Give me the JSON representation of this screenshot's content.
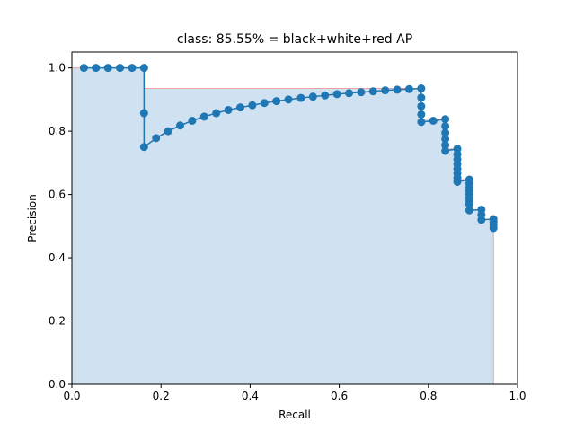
{
  "chart_data": {
    "type": "line",
    "title": "class: 85.55% = black+white+red AP",
    "xlabel": "Recall",
    "ylabel": "Precision",
    "xlim": [
      0,
      1
    ],
    "ylim": [
      0,
      1.05
    ],
    "grid": false,
    "xticks": [
      0.0,
      0.2,
      0.4,
      0.6,
      0.8,
      1.0
    ],
    "xtick_labels": [
      "0.0",
      "0.2",
      "0.4",
      "0.6",
      "0.8",
      "1.0"
    ],
    "yticks": [
      0.0,
      0.2,
      0.4,
      0.6,
      0.8,
      1.0
    ],
    "ytick_labels": [
      "0.0",
      "0.2",
      "0.4",
      "0.6",
      "0.8",
      "1.0"
    ],
    "series": [
      {
        "kind": "precision-recall points",
        "color": "#1f77b4",
        "x": [
          0.027,
          0.054,
          0.081,
          0.108,
          0.135,
          0.162,
          0.162,
          0.162,
          0.189,
          0.216,
          0.243,
          0.27,
          0.297,
          0.324,
          0.351,
          0.378,
          0.405,
          0.432,
          0.459,
          0.486,
          0.514,
          0.541,
          0.568,
          0.595,
          0.622,
          0.649,
          0.676,
          0.703,
          0.73,
          0.757,
          0.784,
          0.784,
          0.784,
          0.784,
          0.784,
          0.811,
          0.838,
          0.838,
          0.838,
          0.838,
          0.838,
          0.838,
          0.865,
          0.865,
          0.865,
          0.865,
          0.865,
          0.865,
          0.865,
          0.865,
          0.892,
          0.892,
          0.892,
          0.892,
          0.892,
          0.892,
          0.892,
          0.892,
          0.892,
          0.919,
          0.919,
          0.919,
          0.946,
          0.946,
          0.946,
          0.946
        ],
        "y": [
          1.0,
          1.0,
          1.0,
          1.0,
          1.0,
          1.0,
          0.857,
          0.75,
          0.778,
          0.8,
          0.818,
          0.833,
          0.846,
          0.857,
          0.867,
          0.875,
          0.882,
          0.889,
          0.895,
          0.9,
          0.905,
          0.909,
          0.913,
          0.917,
          0.92,
          0.923,
          0.926,
          0.929,
          0.931,
          0.933,
          0.935,
          0.906,
          0.879,
          0.853,
          0.829,
          0.833,
          0.838,
          0.816,
          0.795,
          0.775,
          0.756,
          0.738,
          0.744,
          0.727,
          0.711,
          0.696,
          0.681,
          0.667,
          0.653,
          0.64,
          0.647,
          0.635,
          0.623,
          0.611,
          0.6,
          0.589,
          0.579,
          0.569,
          0.55,
          0.552,
          0.536,
          0.52,
          0.522,
          0.513,
          0.504,
          0.494
        ]
      },
      {
        "kind": "interpolated precision envelope",
        "line_color": "#e8a0a0",
        "fill_color": "#d0e2f1",
        "x": [
          0.0,
          0.162,
          0.162,
          0.784,
          0.784,
          0.838,
          0.838,
          0.865,
          0.865,
          0.892,
          0.892,
          0.919,
          0.919,
          0.946,
          0.946
        ],
        "y": [
          1.0,
          1.0,
          0.935,
          0.935,
          0.838,
          0.838,
          0.744,
          0.744,
          0.647,
          0.647,
          0.552,
          0.552,
          0.522,
          0.522,
          0.0
        ]
      }
    ]
  }
}
